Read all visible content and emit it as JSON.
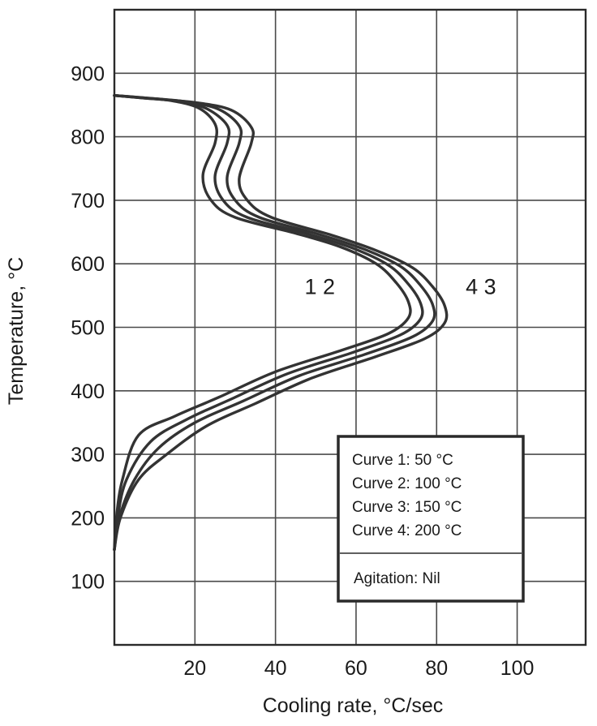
{
  "chart_data": {
    "type": "line",
    "title": "",
    "xlabel": "Cooling rate, °C/sec",
    "ylabel": "Temperature, °C",
    "xlim": [
      0,
      117
    ],
    "ylim": [
      0,
      1000
    ],
    "x_ticks": [
      20,
      40,
      60,
      80,
      100
    ],
    "y_ticks": [
      100,
      200,
      300,
      400,
      500,
      600,
      700,
      800,
      900
    ],
    "grid": true,
    "x_tick_labels": [
      "20",
      "40",
      "60",
      "80",
      "100"
    ],
    "y_tick_labels": [
      "100",
      "200",
      "300",
      "400",
      "500",
      "600",
      "700",
      "800",
      "900"
    ],
    "curve_labels": [
      {
        "text": "1 2",
        "x": 51,
        "y": 565
      },
      {
        "text": "4 3",
        "x": 91,
        "y": 565
      }
    ],
    "legend": {
      "placement": "bottom-right",
      "entries": [
        "Curve 1:  50 °C",
        "Curve 2:  100 °C",
        "Curve 3:  150 °C",
        "Curve 4:  200 °C"
      ],
      "note": "Agitation:  Nil"
    },
    "series": [
      {
        "name": "Curve 1",
        "x": [
          0,
          6,
          14,
          21,
          25,
          25,
          22,
          24,
          30,
          45,
          56,
          65,
          70,
          73,
          73,
          68,
          56,
          40,
          26,
          15,
          6,
          2,
          0.5,
          0
        ],
        "y": [
          865,
          862,
          857,
          845,
          820,
          790,
          740,
          700,
          673,
          648,
          627,
          600,
          570,
          540,
          515,
          490,
          463,
          430,
          390,
          360,
          330,
          260,
          200,
          150
        ]
      },
      {
        "name": "Curve 2",
        "x": [
          0,
          7,
          16,
          23,
          28,
          28,
          25,
          27,
          33,
          48,
          59,
          68,
          73,
          76,
          76,
          71,
          59,
          43,
          29,
          18,
          9,
          3,
          0.8,
          0
        ],
        "y": [
          865,
          861,
          856,
          844,
          818,
          790,
          738,
          700,
          673,
          647,
          625,
          598,
          568,
          538,
          513,
          488,
          460,
          427,
          387,
          355,
          320,
          260,
          200,
          150
        ]
      },
      {
        "name": "Curve 3",
        "x": [
          0,
          8,
          18,
          26,
          31,
          31,
          28,
          30,
          36,
          51,
          62,
          71,
          76,
          79,
          79,
          74,
          62,
          46,
          32,
          20,
          11,
          5,
          1.2,
          0
        ],
        "y": [
          865,
          861,
          855,
          843,
          817,
          790,
          736,
          700,
          673,
          646,
          623,
          596,
          566,
          536,
          510,
          485,
          457,
          424,
          384,
          350,
          310,
          260,
          200,
          150
        ]
      },
      {
        "name": "Curve 4",
        "x": [
          0,
          9,
          20,
          29,
          34,
          34,
          31,
          33,
          39,
          54,
          65,
          74,
          79,
          82,
          82,
          77,
          65,
          49,
          35,
          23,
          13,
          6,
          1.5,
          0
        ],
        "y": [
          865,
          860,
          854,
          842,
          815,
          790,
          734,
          700,
          673,
          645,
          621,
          594,
          564,
          534,
          507,
          482,
          454,
          420,
          380,
          345,
          300,
          260,
          200,
          150
        ]
      }
    ]
  }
}
